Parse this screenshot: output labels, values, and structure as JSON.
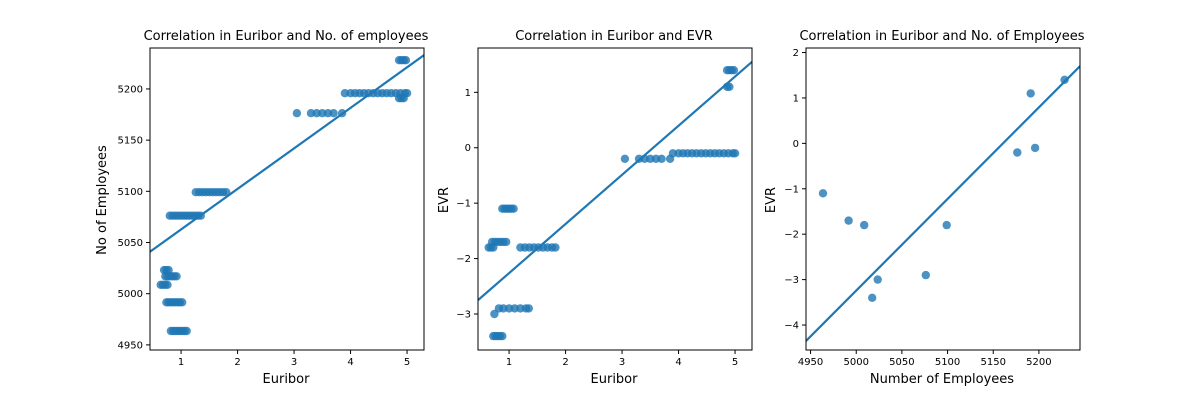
{
  "chart_data": [
    {
      "type": "scatter",
      "title": "Correlation in Euribor and No. of employees",
      "xlabel": "Euribor",
      "ylabel": "No of Employees",
      "xlim": [
        0.45,
        5.3
      ],
      "ylim": [
        4945,
        5240
      ],
      "xticks": [
        1,
        2,
        3,
        4,
        5
      ],
      "yticks": [
        4950,
        5000,
        5050,
        5100,
        5150,
        5200
      ],
      "grid": false,
      "points": [
        [
          0.64,
          5008.7
        ],
        [
          0.68,
          5008.7
        ],
        [
          0.72,
          5008.7
        ],
        [
          0.76,
          5008.7
        ],
        [
          0.7,
          5023
        ],
        [
          0.74,
          5023
        ],
        [
          0.78,
          5023
        ],
        [
          0.72,
          5017
        ],
        [
          0.76,
          5017
        ],
        [
          0.8,
          5017
        ],
        [
          0.84,
          5017
        ],
        [
          0.88,
          5017
        ],
        [
          0.92,
          5017
        ],
        [
          0.74,
          4991.6
        ],
        [
          0.78,
          4991.6
        ],
        [
          0.82,
          4991.6
        ],
        [
          0.86,
          4991.6
        ],
        [
          0.9,
          4991.6
        ],
        [
          0.94,
          4991.6
        ],
        [
          0.98,
          4991.6
        ],
        [
          1.02,
          4991.6
        ],
        [
          0.82,
          4963.6
        ],
        [
          0.86,
          4963.6
        ],
        [
          0.9,
          4963.6
        ],
        [
          0.94,
          4963.6
        ],
        [
          0.98,
          4963.6
        ],
        [
          1.02,
          4963.6
        ],
        [
          1.06,
          4963.6
        ],
        [
          1.1,
          4963.6
        ],
        [
          0.8,
          5076.2
        ],
        [
          0.85,
          5076.2
        ],
        [
          0.9,
          5076.2
        ],
        [
          0.95,
          5076.2
        ],
        [
          1.0,
          5076.2
        ],
        [
          1.05,
          5076.2
        ],
        [
          1.1,
          5076.2
        ],
        [
          1.15,
          5076.2
        ],
        [
          1.2,
          5076.2
        ],
        [
          1.25,
          5076.2
        ],
        [
          1.3,
          5076.2
        ],
        [
          1.35,
          5076.2
        ],
        [
          1.26,
          5099.1
        ],
        [
          1.32,
          5099.1
        ],
        [
          1.38,
          5099.1
        ],
        [
          1.44,
          5099.1
        ],
        [
          1.5,
          5099.1
        ],
        [
          1.56,
          5099.1
        ],
        [
          1.62,
          5099.1
        ],
        [
          1.68,
          5099.1
        ],
        [
          1.74,
          5099.1
        ],
        [
          1.8,
          5099.1
        ],
        [
          3.05,
          5176.3
        ],
        [
          3.3,
          5176.3
        ],
        [
          3.4,
          5176.3
        ],
        [
          3.5,
          5176.3
        ],
        [
          3.6,
          5176.3
        ],
        [
          3.7,
          5176.3
        ],
        [
          3.85,
          5176.3
        ],
        [
          3.9,
          5195.8
        ],
        [
          4.0,
          5195.8
        ],
        [
          4.08,
          5195.8
        ],
        [
          4.16,
          5195.8
        ],
        [
          4.24,
          5195.8
        ],
        [
          4.32,
          5195.8
        ],
        [
          4.4,
          5195.8
        ],
        [
          4.48,
          5195.8
        ],
        [
          4.56,
          5195.8
        ],
        [
          4.64,
          5195.8
        ],
        [
          4.72,
          5195.8
        ],
        [
          4.8,
          5195.8
        ],
        [
          4.88,
          5195.8
        ],
        [
          4.96,
          5195.8
        ],
        [
          5.0,
          5195.8
        ],
        [
          4.86,
          5191
        ],
        [
          4.9,
          5191
        ],
        [
          4.94,
          5191
        ],
        [
          4.86,
          5228.1
        ],
        [
          4.9,
          5228.1
        ],
        [
          4.94,
          5228.1
        ],
        [
          4.98,
          5228.1
        ]
      ],
      "fit_line": {
        "x": [
          0.45,
          5.3
        ],
        "y": [
          5041,
          5233
        ]
      }
    },
    {
      "type": "scatter",
      "title": "Correlation in Euribor and EVR",
      "xlabel": "Euribor",
      "ylabel": "EVR",
      "xlim": [
        0.45,
        5.3
      ],
      "ylim": [
        -3.65,
        1.8
      ],
      "xticks": [
        1,
        2,
        3,
        4,
        5
      ],
      "yticks": [
        -3,
        -2,
        -1,
        0,
        1
      ],
      "grid": false,
      "points": [
        [
          0.64,
          -1.8
        ],
        [
          0.68,
          -1.8
        ],
        [
          0.72,
          -1.8
        ],
        [
          0.7,
          -1.7
        ],
        [
          0.75,
          -1.7
        ],
        [
          0.8,
          -1.7
        ],
        [
          0.85,
          -1.7
        ],
        [
          0.9,
          -1.7
        ],
        [
          0.95,
          -1.7
        ],
        [
          0.74,
          -3.0
        ],
        [
          0.72,
          -3.4
        ],
        [
          0.76,
          -3.4
        ],
        [
          0.8,
          -3.4
        ],
        [
          0.84,
          -3.4
        ],
        [
          0.88,
          -3.4
        ],
        [
          0.82,
          -2.9
        ],
        [
          0.9,
          -2.9
        ],
        [
          1.0,
          -2.9
        ],
        [
          1.1,
          -2.9
        ],
        [
          1.2,
          -2.9
        ],
        [
          1.3,
          -2.9
        ],
        [
          1.35,
          -2.9
        ],
        [
          0.88,
          -1.1
        ],
        [
          0.92,
          -1.1
        ],
        [
          0.96,
          -1.1
        ],
        [
          1.0,
          -1.1
        ],
        [
          1.04,
          -1.1
        ],
        [
          1.08,
          -1.1
        ],
        [
          1.2,
          -1.8
        ],
        [
          1.28,
          -1.8
        ],
        [
          1.36,
          -1.8
        ],
        [
          1.44,
          -1.8
        ],
        [
          1.52,
          -1.8
        ],
        [
          1.6,
          -1.8
        ],
        [
          1.68,
          -1.8
        ],
        [
          1.76,
          -1.8
        ],
        [
          1.82,
          -1.8
        ],
        [
          3.05,
          -0.2
        ],
        [
          3.3,
          -0.2
        ],
        [
          3.4,
          -0.2
        ],
        [
          3.5,
          -0.2
        ],
        [
          3.6,
          -0.2
        ],
        [
          3.7,
          -0.2
        ],
        [
          3.85,
          -0.2
        ],
        [
          3.9,
          -0.1
        ],
        [
          4.0,
          -0.1
        ],
        [
          4.08,
          -0.1
        ],
        [
          4.16,
          -0.1
        ],
        [
          4.24,
          -0.1
        ],
        [
          4.32,
          -0.1
        ],
        [
          4.4,
          -0.1
        ],
        [
          4.48,
          -0.1
        ],
        [
          4.56,
          -0.1
        ],
        [
          4.64,
          -0.1
        ],
        [
          4.72,
          -0.1
        ],
        [
          4.8,
          -0.1
        ],
        [
          4.88,
          -0.1
        ],
        [
          4.96,
          -0.1
        ],
        [
          5.0,
          -0.1
        ],
        [
          4.86,
          1.1
        ],
        [
          4.9,
          1.1
        ],
        [
          4.86,
          1.4
        ],
        [
          4.9,
          1.4
        ],
        [
          4.94,
          1.4
        ],
        [
          4.98,
          1.4
        ]
      ],
      "fit_line": {
        "x": [
          0.45,
          5.3
        ],
        "y": [
          -2.75,
          1.55
        ]
      }
    },
    {
      "type": "scatter",
      "title": "Correlation in Euribor and No. of Employees",
      "xlabel": "Number of Employees",
      "ylabel": "EVR",
      "xlim": [
        4945,
        5245
      ],
      "ylim": [
        -4.55,
        2.1
      ],
      "xticks": [
        4950,
        5000,
        5050,
        5100,
        5150,
        5200
      ],
      "yticks": [
        -4,
        -3,
        -2,
        -1,
        0,
        1,
        2
      ],
      "grid": false,
      "points": [
        [
          4963.6,
          -1.1
        ],
        [
          4991.6,
          -1.7
        ],
        [
          5008.7,
          -1.8
        ],
        [
          5017.5,
          -3.4
        ],
        [
          5023.5,
          -3.0
        ],
        [
          5076.2,
          -2.9
        ],
        [
          5099.1,
          -1.8
        ],
        [
          5176.3,
          -0.2
        ],
        [
          5191.0,
          1.1
        ],
        [
          5195.8,
          -0.1
        ],
        [
          5228.1,
          1.4
        ]
      ],
      "fit_line": {
        "x": [
          4945,
          5245
        ],
        "y": [
          -4.35,
          1.7
        ]
      }
    }
  ]
}
